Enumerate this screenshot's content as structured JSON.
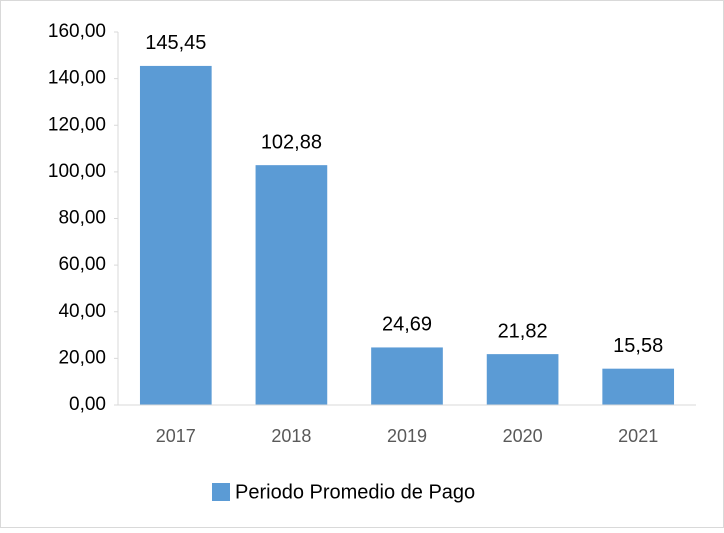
{
  "chart_data": {
    "type": "bar",
    "categories": [
      "2017",
      "2018",
      "2019",
      "2020",
      "2021"
    ],
    "series": [
      {
        "name": "Periodo Promedio de Pago",
        "color": "#5b9bd5",
        "values": [
          145.45,
          102.88,
          24.69,
          21.82,
          15.58
        ],
        "value_labels": [
          "145,45",
          "102,88",
          "24,69",
          "21,82",
          "15,58"
        ]
      }
    ],
    "ylim": [
      0,
      160
    ],
    "yticks": [
      {
        "value": 0,
        "label": "0,00"
      },
      {
        "value": 20,
        "label": "20,00"
      },
      {
        "value": 40,
        "label": "40,00"
      },
      {
        "value": 60,
        "label": "60,00"
      },
      {
        "value": 80,
        "label": "80,00"
      },
      {
        "value": 100,
        "label": "100,00"
      },
      {
        "value": 120,
        "label": "120,00"
      },
      {
        "value": 140,
        "label": "140,00"
      },
      {
        "value": 160,
        "label": "160,00"
      }
    ],
    "grid": false,
    "legend": "bottom"
  }
}
